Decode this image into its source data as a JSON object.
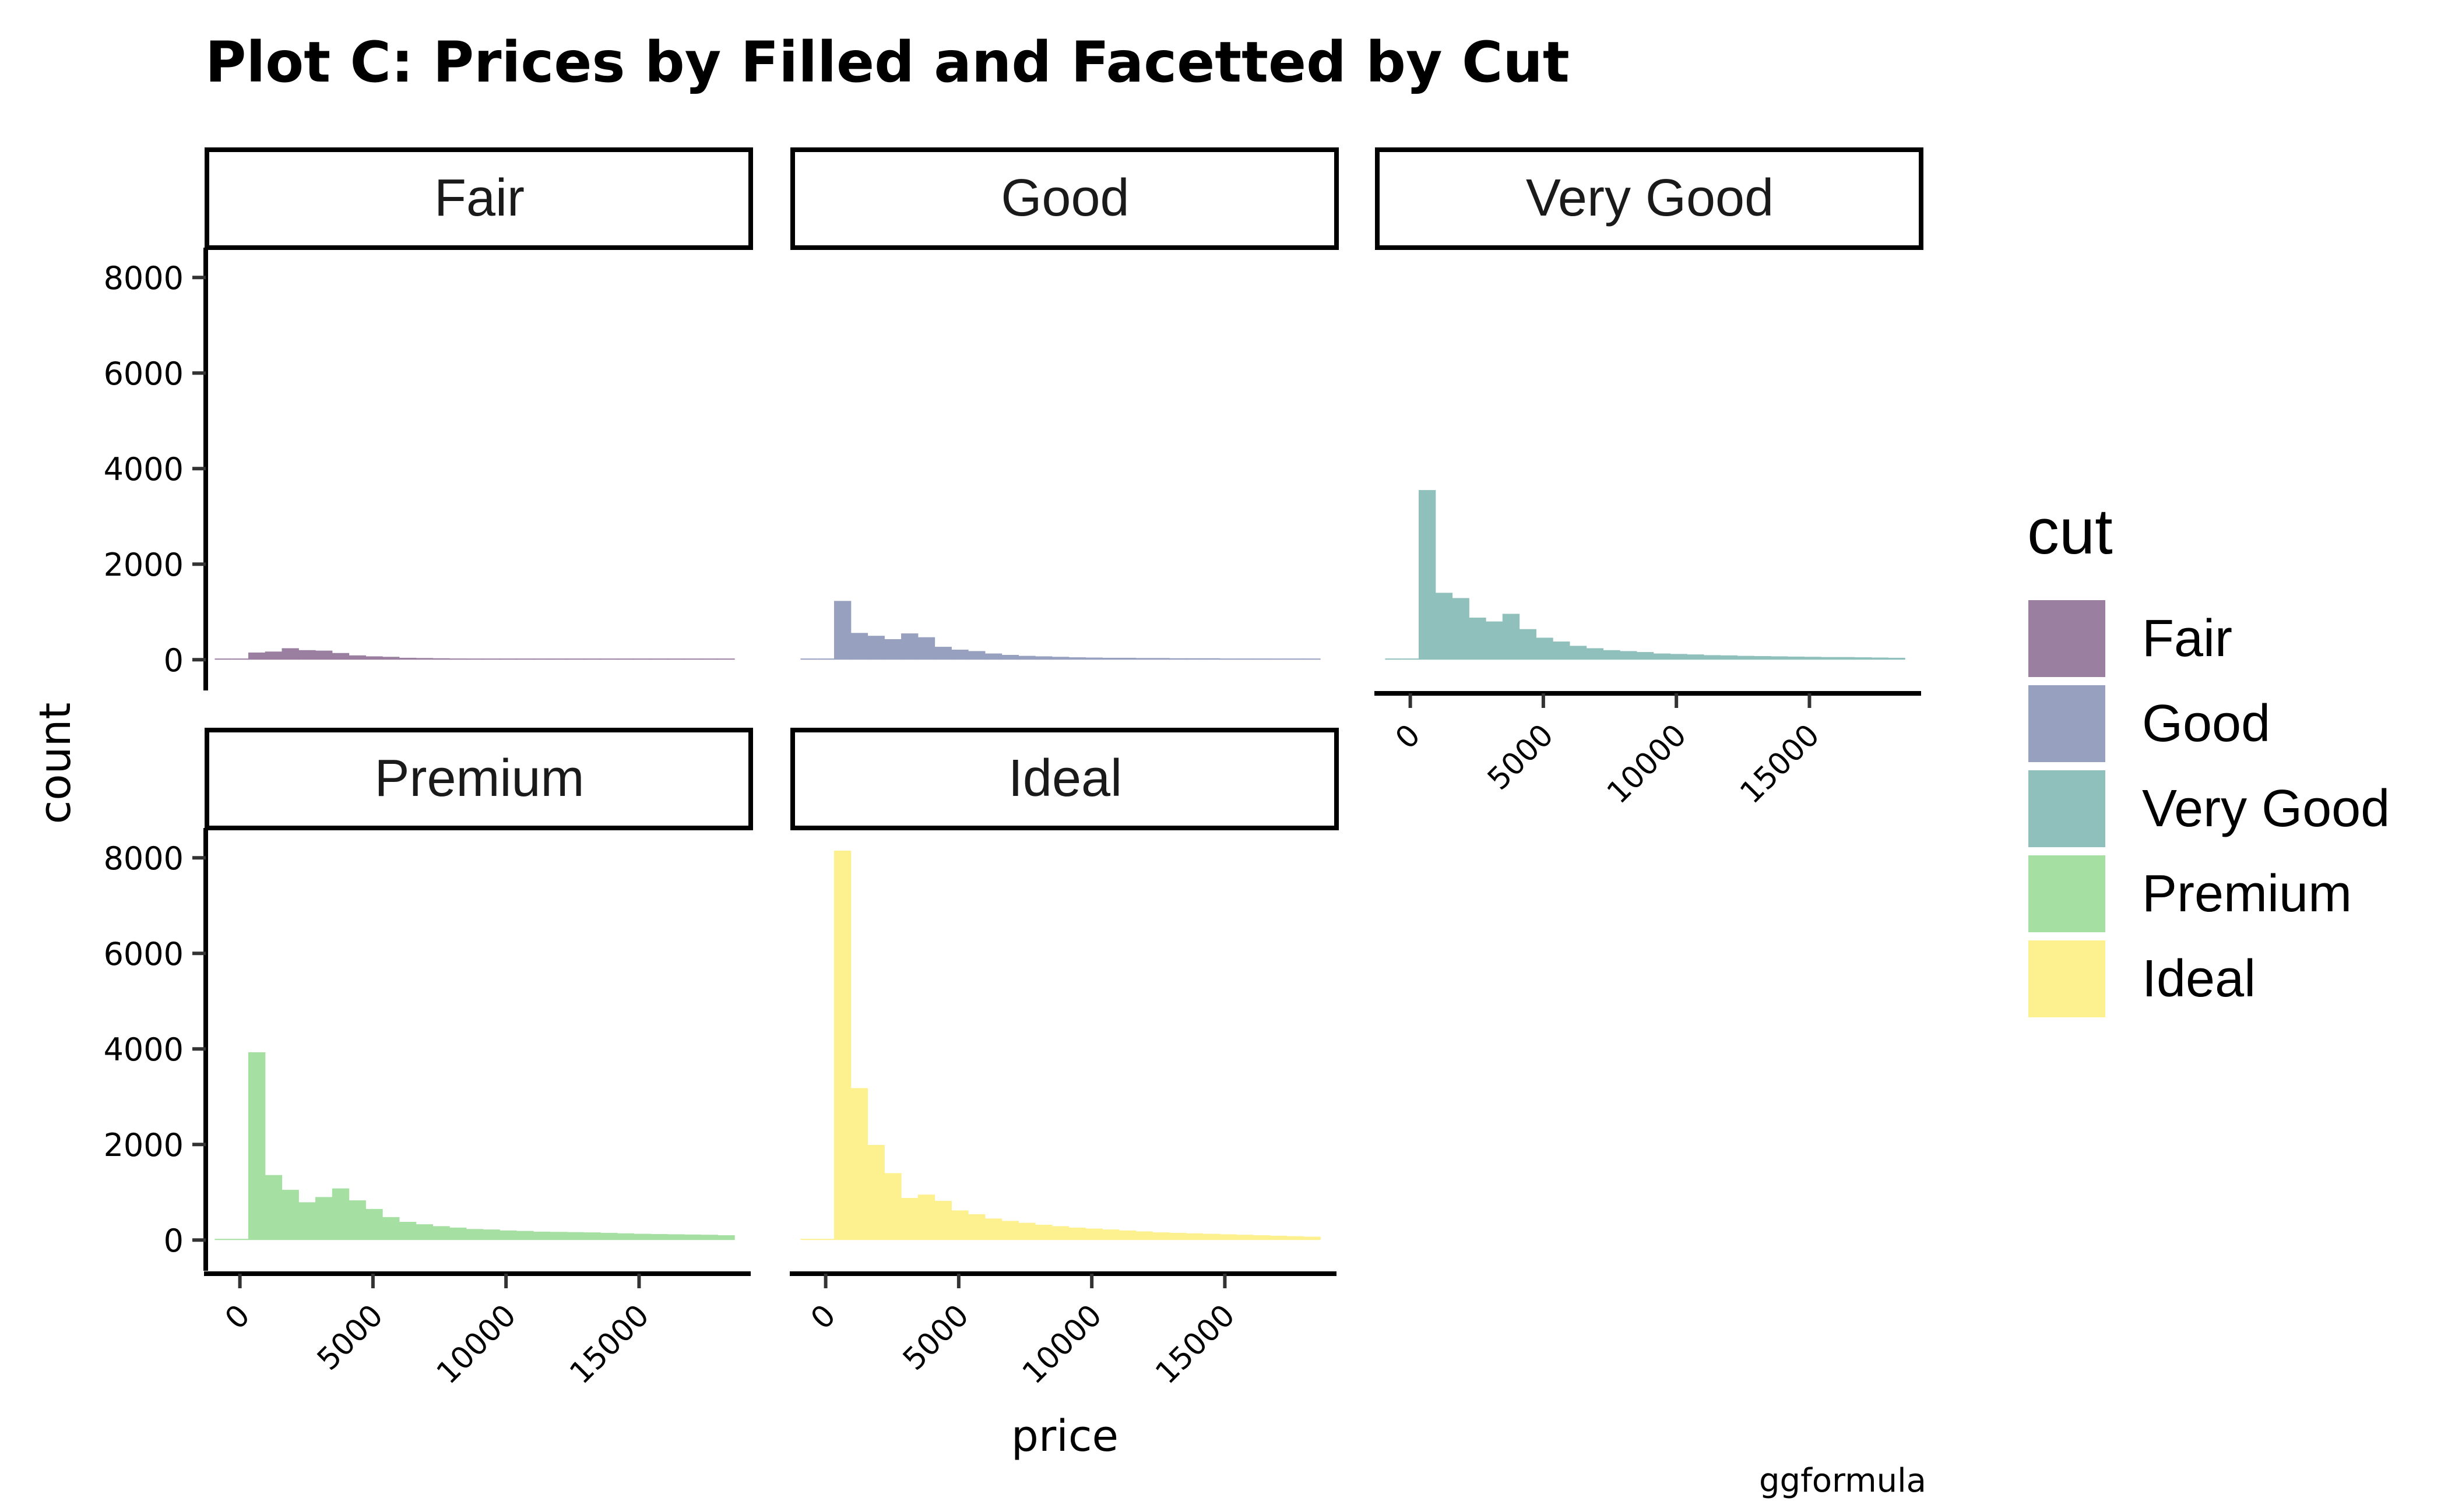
{
  "chart_data": {
    "type": "bar",
    "title": "Plot C: Prices by Filled and Facetted by Cut",
    "xlabel": "price",
    "ylabel": "count",
    "caption": "ggformula",
    "xlim": [
      -1130,
      19130
    ],
    "ylim": [
      -400,
      8600
    ],
    "x_ticks": [
      0,
      5000,
      10000,
      15000
    ],
    "y_ticks": [
      0,
      2000,
      4000,
      6000,
      8000
    ],
    "bin_width": 630,
    "x": [
      0,
      630,
      1260,
      1890,
      2520,
      3150,
      3780,
      4410,
      5040,
      5670,
      6300,
      6930,
      7560,
      8190,
      8820,
      9450,
      10080,
      10710,
      11340,
      11970,
      12600,
      13230,
      13860,
      14490,
      15120,
      15750,
      16380,
      17010,
      17640,
      18270
    ],
    "legend_title": "cut",
    "legend_position": "right",
    "series": [
      {
        "name": "Fair",
        "color": "#9a7fa1",
        "values": [
          0,
          150,
          170,
          240,
          200,
          190,
          140,
          90,
          70,
          60,
          40,
          35,
          30,
          25,
          20,
          20,
          18,
          15,
          15,
          12,
          12,
          10,
          10,
          10,
          8,
          8,
          8,
          6,
          6,
          5
        ]
      },
      {
        "name": "Good",
        "color": "#97a0bf",
        "values": [
          0,
          1230,
          560,
          500,
          430,
          550,
          470,
          270,
          210,
          180,
          130,
          100,
          80,
          70,
          60,
          50,
          45,
          40,
          40,
          35,
          35,
          30,
          30,
          30,
          25,
          25,
          25,
          20,
          20,
          20
        ]
      },
      {
        "name": "Very Good",
        "color": "#8fc0bc",
        "values": [
          0,
          3550,
          1400,
          1290,
          880,
          800,
          960,
          640,
          460,
          380,
          290,
          240,
          200,
          180,
          160,
          130,
          120,
          110,
          95,
          90,
          80,
          75,
          70,
          65,
          60,
          55,
          55,
          50,
          45,
          40
        ]
      },
      {
        "name": "Premium",
        "color": "#a6dfa2",
        "values": [
          0,
          3930,
          1360,
          1050,
          790,
          900,
          1080,
          830,
          650,
          480,
          380,
          330,
          290,
          260,
          230,
          220,
          200,
          190,
          175,
          170,
          165,
          160,
          150,
          140,
          130,
          125,
          120,
          115,
          110,
          100
        ]
      },
      {
        "name": "Ideal",
        "color": "#fdf08f",
        "values": [
          0,
          8150,
          3180,
          1990,
          1400,
          880,
          950,
          820,
          620,
          540,
          450,
          400,
          360,
          320,
          290,
          260,
          240,
          220,
          200,
          180,
          160,
          150,
          140,
          130,
          120,
          110,
          100,
          90,
          80,
          70
        ]
      }
    ]
  }
}
